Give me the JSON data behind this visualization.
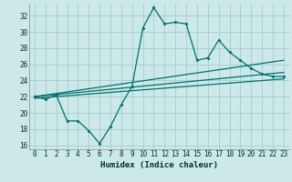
{
  "title": "",
  "xlabel": "Humidex (Indice chaleur)",
  "xlim": [
    -0.5,
    23.5
  ],
  "ylim": [
    15.5,
    33.5
  ],
  "yticks": [
    16,
    18,
    20,
    22,
    24,
    26,
    28,
    30,
    32
  ],
  "xticks": [
    0,
    1,
    2,
    3,
    4,
    5,
    6,
    7,
    8,
    9,
    10,
    11,
    12,
    13,
    14,
    15,
    16,
    17,
    18,
    19,
    20,
    21,
    22,
    23
  ],
  "bg_color": "#cce8e8",
  "grid_color": "#aad0d0",
  "line_color": "#007070",
  "line1_x": [
    0,
    1,
    2,
    3,
    4,
    5,
    6,
    7,
    8,
    9,
    10,
    11,
    12,
    13,
    14,
    15,
    16,
    17,
    18,
    19,
    20,
    21,
    22,
    23
  ],
  "line1_y": [
    22.0,
    21.7,
    22.2,
    19.0,
    19.0,
    17.8,
    16.2,
    18.3,
    21.0,
    23.3,
    30.5,
    33.0,
    31.0,
    31.2,
    31.0,
    26.5,
    26.8,
    29.0,
    27.5,
    26.5,
    25.5,
    24.8,
    24.5,
    24.5
  ],
  "line2_x": [
    0,
    23
  ],
  "line2_y": [
    22.0,
    26.5
  ],
  "line3_x": [
    0,
    23
  ],
  "line3_y": [
    22.0,
    25.0
  ],
  "line4_x": [
    0,
    23
  ],
  "line4_y": [
    21.8,
    24.2
  ]
}
